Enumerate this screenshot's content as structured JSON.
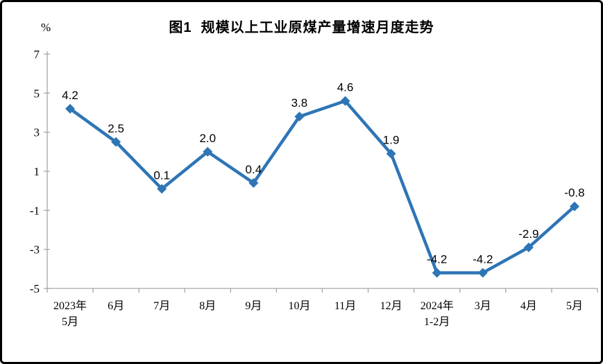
{
  "window": {
    "background_color": "#ffffff",
    "border_color": "#000000"
  },
  "chart_data": {
    "type": "line",
    "title": "图1  规模以上工业原煤产量增速月度走势",
    "unit_label": "%",
    "categories": [
      "2023年\n5月",
      "6月",
      "7月",
      "8月",
      "9月",
      "10月",
      "11月",
      "12月",
      "2024年\n1-2月",
      "3月",
      "4月",
      "5月"
    ],
    "values": [
      4.2,
      2.5,
      0.1,
      2.0,
      0.4,
      3.8,
      4.6,
      1.9,
      -4.2,
      -4.2,
      -2.9,
      -0.8
    ],
    "data_labels": [
      "4.2",
      "2.5",
      "0.1",
      "2.0",
      "0.4",
      "3.8",
      "4.6",
      "1.9",
      "-4.2",
      "-4.2",
      "-2.9",
      "-0.8"
    ],
    "ylim": [
      -5,
      7
    ],
    "yticks": [
      7,
      5,
      3,
      1,
      -1,
      -3,
      -5
    ],
    "grid": false,
    "legend": "none",
    "marker": "diamond",
    "series_color": "#2E75B6",
    "axis_color": "#A6A6A6",
    "text_color": "#000000"
  }
}
